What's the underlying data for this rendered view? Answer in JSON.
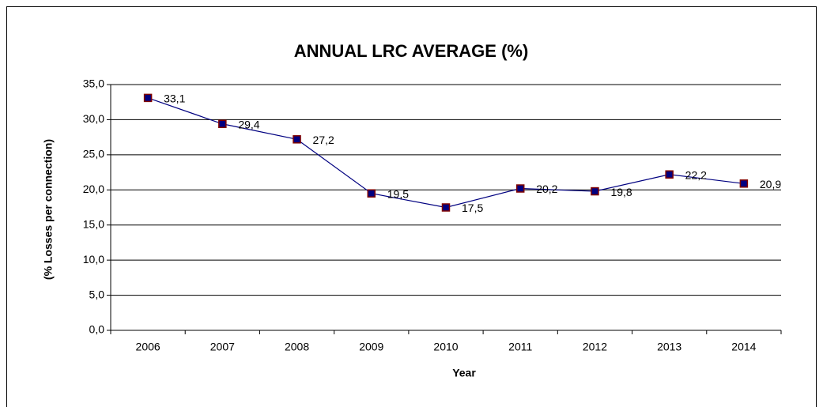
{
  "chart_data": {
    "type": "line",
    "title": "ANNUAL LRC AVERAGE (%)",
    "x_label": "Year",
    "y_label": "(% Losses per connection)",
    "categories": [
      "2006",
      "2007",
      "2008",
      "2009",
      "2010",
      "2011",
      "2012",
      "2013",
      "2014"
    ],
    "values": [
      33.1,
      29.4,
      27.2,
      19.5,
      17.5,
      20.2,
      19.8,
      22.2,
      20.9
    ],
    "value_labels": [
      "33,1",
      "29,4",
      "27,2",
      "19,5",
      "17,5",
      "20,2",
      "19,8",
      "22,2",
      "20,9"
    ],
    "color": "#000080",
    "marker_edge_color": "#800000",
    "ylim": [
      0,
      35
    ],
    "yticks": [
      {
        "value": 0,
        "label": "0,0"
      },
      {
        "value": 5,
        "label": "5,0"
      },
      {
        "value": 10,
        "label": "10,0"
      },
      {
        "value": 15,
        "label": "15,0"
      },
      {
        "value": 20,
        "label": "20,0"
      },
      {
        "value": 25,
        "label": "25,0"
      },
      {
        "value": 30,
        "label": "30,0"
      },
      {
        "value": 35,
        "label": "35,0"
      }
    ],
    "grid": true
  }
}
